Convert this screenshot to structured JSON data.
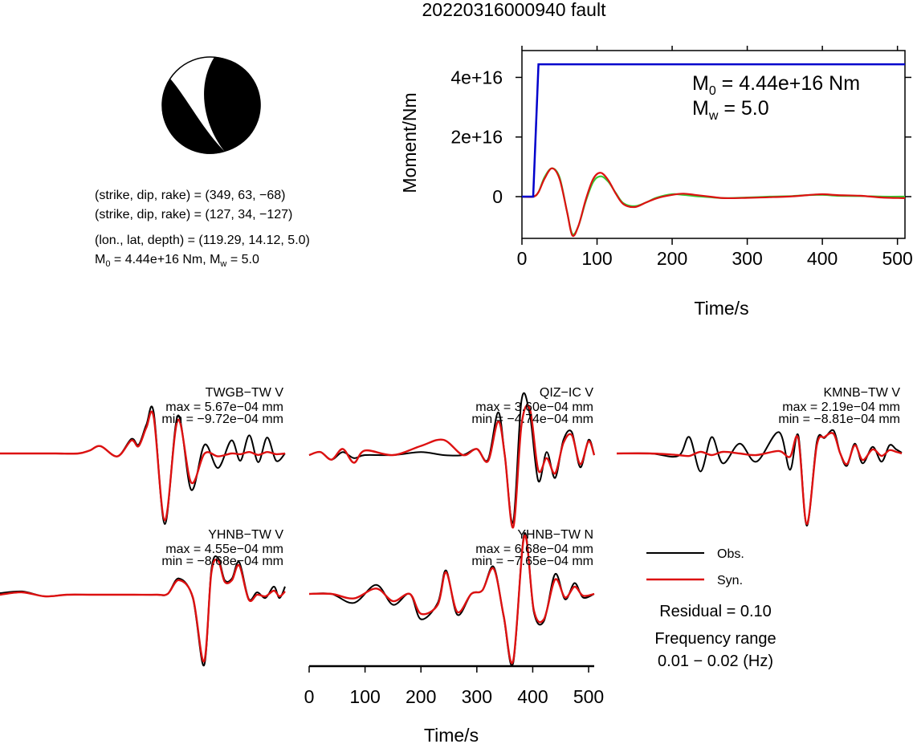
{
  "title": "20220316000940 fault",
  "mechanism": {
    "plane1": "(strike, dip, rake) = (349, 63, −68)",
    "plane2": "(strike, dip, rake) = (127, 34, −127)",
    "location": "(lon., lat, depth) = (119.29, 14.12, 5.0)",
    "moment_line": {
      "m0_label": "M",
      "m0_sub": "0",
      "m0_value": " = 4.44e+16 Nm, M",
      "mw_sub": "w",
      "mw_value": " = 5.0"
    },
    "strike": 349,
    "dip": 63,
    "rake": -68
  },
  "legend": {
    "obs": "Obs.",
    "syn": "Syn.",
    "obs_color": "#000000",
    "syn_color": "#dd1111"
  },
  "residual": "Residual = 0.10",
  "freq_label": "Frequency range",
  "freq_value": "0.01 − 0.02 (Hz)",
  "chart_data": [
    {
      "type": "line",
      "id": "moment-plot",
      "xlabel": "Time/s",
      "ylabel": "Moment/Nm",
      "xlim": [
        0,
        510
      ],
      "ylim": [
        -1.4e+16,
        4.9e+16
      ],
      "xticks": [
        0,
        100,
        200,
        300,
        400,
        500
      ],
      "xtick_labels": [
        "0",
        "100",
        "200",
        "300",
        "400",
        "500"
      ],
      "yticks": [
        0,
        2e+16,
        4e+16
      ],
      "ytick_labels": [
        "0",
        "2e+16",
        "4e+16"
      ],
      "annotation": {
        "m0_text": "M",
        "m0_sub": "0",
        "m0_value": " = 4.44e+16 Nm",
        "mw_text": "M",
        "mw_sub": "w",
        "mw_value": " = 5.0"
      },
      "series": [
        {
          "key": "cumulative",
          "color": "#0000cc",
          "x": [
            0,
            15,
            22,
            510
          ],
          "y": [
            0,
            0,
            4.44e+16,
            4.44e+16
          ]
        },
        {
          "key": "rate_green",
          "color": "#33cc33",
          "x": [
            0,
            15,
            22,
            30,
            40,
            50,
            60,
            67,
            75,
            85,
            95,
            105,
            115,
            125,
            135,
            150,
            165,
            180,
            200,
            215,
            230,
            250,
            270,
            300,
            330,
            360,
            380,
            400,
            420,
            450,
            480,
            510
          ],
          "y": [
            0,
            0,
            1500000000000000.0,
            6500000000000000.0,
            9500000000000000.0,
            6500000000000000.0,
            -5000000000000000.0,
            -1.25e+16,
            -1e+16,
            -1500000000000000.0,
            5000000000000000.0,
            6800000000000000.0,
            5000000000000000.0,
            1200000000000000.0,
            -2200000000000000.0,
            -3200000000000000.0,
            -2000000000000000.0,
            -300000000000000.0,
            800000000000000.0,
            600000000000000.0,
            200000000000000.0,
            -200000000000000.0,
            -500000000000000.0,
            -300000000000000.0,
            0,
            200000000000000.0,
            500000000000000.0,
            600000000000000.0,
            300000000000000.0,
            200000000000000.0,
            0,
            0
          ]
        },
        {
          "key": "rate_red",
          "color": "#dd1111",
          "x": [
            0,
            15,
            22,
            30,
            40,
            50,
            60,
            67,
            75,
            85,
            95,
            105,
            115,
            125,
            135,
            150,
            165,
            180,
            200,
            215,
            230,
            250,
            270,
            300,
            330,
            360,
            380,
            400,
            420,
            450,
            480,
            510
          ],
          "y": [
            0,
            0,
            1500000000000000.0,
            6000000000000000.0,
            9500000000000000.0,
            6000000000000000.0,
            -5000000000000000.0,
            -1.3e+16,
            -1e+16,
            -1000000000000000.0,
            6000000000000000.0,
            8000000000000000.0,
            5500000000000000.0,
            1000000000000000.0,
            -2500000000000000.0,
            -3500000000000000.0,
            -2000000000000000.0,
            -500000000000000.0,
            600000000000000.0,
            1000000000000000.0,
            600000000000000.0,
            0,
            -500000000000000.0,
            -400000000000000.0,
            -200000000000000.0,
            100000000000000.0,
            500000000000000.0,
            800000000000000.0,
            500000000000000.0,
            300000000000000.0,
            -300000000000000.0,
            -500000000000000.0
          ]
        }
      ]
    },
    {
      "type": "line",
      "id": "waveforms",
      "xlabel": "Time/s",
      "xlim": [
        0,
        510
      ],
      "xticks": [
        0,
        100,
        200,
        300,
        400,
        500
      ],
      "xtick_labels": [
        "0",
        "100",
        "200",
        "300",
        "400",
        "500"
      ],
      "stations": [
        {
          "name": "TWGB−TW V",
          "max": "max = 5.67e−04 mm",
          "min": "min = −9.72e−04 mm",
          "ymax": 0.000567,
          "ymin": -0.000972,
          "obs": {
            "x": [
              0,
              50,
              100,
              140,
              160,
              180,
              210,
              235,
              248,
              262,
              275,
              295,
              318,
              342,
              366,
              390,
              414,
              430,
              446,
              462,
              478,
              494,
              510
            ],
            "y": [
              0,
              0,
              0,
              0,
              4e-05,
              0.0001,
              -4e-05,
              0.0002,
              0.00012,
              0.0004,
              0.000567,
              -0.000972,
              0.00052,
              -0.0005,
              0.00012,
              -0.0002,
              0.00018,
              -0.0001,
              0.00025,
              -0.00012,
              0.00022,
              -0.0001,
              0
            ]
          },
          "syn": {
            "x": [
              0,
              50,
              100,
              140,
              160,
              180,
              210,
              235,
              248,
              262,
              275,
              295,
              318,
              342,
              366,
              390,
              414,
              430,
              446,
              462,
              478,
              494,
              510
            ],
            "y": [
              0,
              0,
              0,
              0,
              4e-05,
              0.0001,
              -4e-05,
              0.00018,
              0.0001,
              0.00036,
              0.0005,
              -0.00092,
              0.00046,
              -0.0004,
              0,
              -4e-05,
              0,
              -1e-05,
              2e-05,
              -2e-05,
              2e-05,
              -1e-05,
              0
            ]
          }
        },
        {
          "name": "QIZ−IC V",
          "max": "max = 3.60e−04 mm",
          "min": "min = −4.74e−04 mm",
          "ymax": 0.00036,
          "ymin": -0.000474,
          "obs": {
            "x": [
              0,
              20,
              40,
              60,
              80,
              100,
              150,
              200,
              240,
              275,
              300,
              320,
              338,
              350,
              365,
              380,
              395,
              410,
              425,
              440,
              455,
              470,
              485,
              500,
              510
            ],
            "y": [
              0,
              2e-05,
              -3e-05,
              2e-05,
              -2e-05,
              0,
              0,
              2e-05,
              0,
              0,
              4e-05,
              -3e-05,
              0.00028,
              0,
              -0.00044,
              0.00036,
              0.00026,
              -0.00017,
              2e-05,
              -0.00015,
              0.0001,
              0.00015,
              -8e-05,
              0.0001,
              0
            ]
          },
          "syn": {
            "x": [
              0,
              20,
              40,
              60,
              80,
              100,
              150,
              200,
              240,
              275,
              300,
              320,
              338,
              350,
              365,
              380,
              395,
              410,
              425,
              440,
              455,
              470,
              485,
              500,
              510
            ],
            "y": [
              0,
              2e-05,
              -3e-05,
              4e-05,
              -5e-05,
              3e-05,
              0,
              6e-05,
              0.0001,
              0,
              4e-05,
              -4e-05,
              0.00022,
              0,
              -0.000474,
              0.0002,
              0.0003,
              -0.0001,
              -2e-05,
              -0.00012,
              8e-05,
              0.00013,
              -6e-05,
              9e-05,
              0
            ]
          }
        },
        {
          "name": "KMNB−TW V",
          "max": "max = 2.19e−04 mm",
          "min": "min = −8.81e−04 mm",
          "ymax": 0.000219,
          "ymin": -0.000881,
          "obs": {
            "x": [
              0,
              60,
              110,
              130,
              150,
              170,
              190,
              220,
              250,
              290,
              310,
              325,
              340,
              358,
              372,
              388,
              400,
              412,
              426,
              440,
              458,
              474,
              488,
              500,
              510
            ],
            "y": [
              0,
              0,
              -3e-05,
              0.0002,
              -0.00022,
              0.0002,
              -0.00012,
              0.00012,
              -0.0001,
              0.00026,
              -0.0002,
              0.000219,
              -0.000881,
              0.00014,
              0.00019,
              0.00028,
              0,
              -0.00015,
              0.00012,
              -0.00012,
              8e-05,
              -0.0001,
              0.0001,
              5e-05,
              1e-05
            ]
          },
          "syn": {
            "x": [
              0,
              60,
              110,
              130,
              150,
              170,
              190,
              220,
              250,
              290,
              310,
              325,
              340,
              358,
              372,
              388,
              400,
              412,
              426,
              440,
              458,
              474,
              488,
              500,
              510
            ],
            "y": [
              0,
              0,
              -2e-05,
              -3e-05,
              2e-05,
              -2e-05,
              2e-05,
              0,
              -2e-05,
              3e-05,
              -4e-05,
              0.00018,
              -0.00086,
              0.0001,
              0.0002,
              0.00024,
              0,
              -0.00013,
              0.0001,
              -8e-05,
              5e-05,
              -3e-05,
              4e-05,
              2e-05,
              0
            ]
          }
        },
        {
          "name": "YHNB−TW V",
          "max": "max = 4.55e−04 mm",
          "min": "min = −8.68e−04 mm",
          "ymax": 0.000455,
          "ymin": -0.000868,
          "obs": {
            "x": [
              0,
              40,
              80,
              120,
              160,
              200,
              240,
              280,
              300,
              320,
              345,
              365,
              378,
              390,
              402,
              415,
              428,
              445,
              460,
              475,
              490,
              500,
              510
            ],
            "y": [
              2e-05,
              4e-05,
              -2e-05,
              0,
              0,
              0,
              0,
              0,
              1e-05,
              0.0002,
              -4e-05,
              -0.000868,
              0.0003,
              0.000455,
              0.00018,
              0.0002,
              0.0004,
              -5e-05,
              3e-05,
              -4e-05,
              0.0001,
              -4e-05,
              0.0001
            ]
          },
          "syn": {
            "x": [
              0,
              40,
              80,
              120,
              160,
              200,
              240,
              280,
              300,
              320,
              345,
              365,
              378,
              390,
              402,
              415,
              428,
              445,
              460,
              475,
              490,
              500,
              510
            ],
            "y": [
              0,
              3e-05,
              -2e-05,
              0,
              0,
              0,
              0,
              0,
              1e-05,
              0.00018,
              -3e-05,
              -0.00082,
              0.00026,
              0.00042,
              0.00016,
              0.00018,
              0.00036,
              -6e-05,
              0,
              -2e-05,
              5e-05,
              -2e-05,
              4e-05
            ]
          }
        },
        {
          "name": "YHNB−TW N",
          "max": "max = 6.68e−04 mm",
          "min": "min = −7.65e−04 mm",
          "ymax": 0.000668,
          "ymin": -0.000765,
          "obs": {
            "x": [
              0,
              40,
              80,
              120,
              150,
              180,
              200,
              230,
              245,
              265,
              290,
              310,
              330,
              348,
              365,
              385,
              402,
              420,
              440,
              458,
              475,
              490,
              510
            ],
            "y": [
              0,
              0,
              -0.0001,
              0.0001,
              -0.00012,
              0,
              -0.00028,
              -0.0001,
              0.00026,
              -0.00023,
              0,
              4e-05,
              0.0003,
              -0.00025,
              -0.000765,
              0.000668,
              -0.0002,
              -0.0003,
              0.00022,
              -6e-05,
              0.00012,
              -4e-05,
              0
            ]
          },
          "syn": {
            "x": [
              0,
              40,
              80,
              120,
              150,
              180,
              200,
              230,
              245,
              265,
              290,
              310,
              330,
              348,
              365,
              385,
              402,
              420,
              440,
              458,
              475,
              490,
              510
            ],
            "y": [
              0,
              0,
              -5e-05,
              6e-05,
              -8e-05,
              0,
              -0.00022,
              -0.00012,
              0.00024,
              -0.0002,
              0,
              4e-05,
              0.00028,
              -0.00024,
              -0.00074,
              0.00064,
              -0.00018,
              -0.00028,
              0.00016,
              -4e-05,
              8e-05,
              -2e-05,
              0
            ]
          }
        }
      ]
    }
  ]
}
